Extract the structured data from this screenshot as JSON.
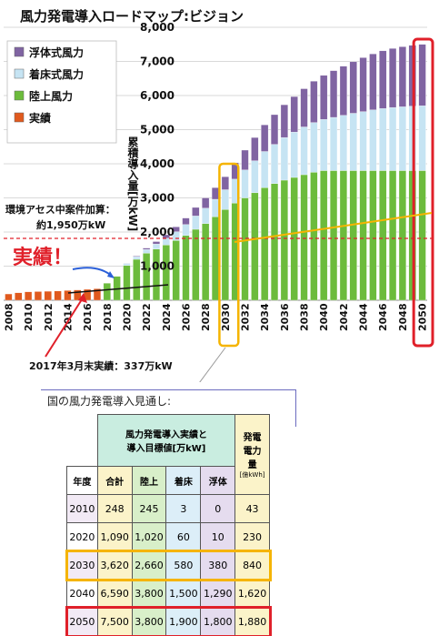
{
  "title": "風力発電導入ロードマップ:ビジョン",
  "chart_data": {
    "type": "bar",
    "stacked": true,
    "ylabel": "累積導入量[万kW]",
    "ylim": [
      0,
      8000
    ],
    "yticks": [
      1000,
      2000,
      3000,
      4000,
      5000,
      6000,
      7000,
      8000
    ],
    "ytick_labels": [
      "1,000",
      "2,000",
      "3,000",
      "4,000",
      "5,000",
      "6,000",
      "7,000",
      "8,000"
    ],
    "xtick_labels": [
      "2008",
      "2010",
      "2012",
      "2014",
      "2016",
      "2018",
      "2020",
      "2022",
      "2024",
      "2026",
      "2028",
      "2030",
      "2032",
      "2034",
      "2036",
      "2038",
      "2040",
      "2042",
      "2044",
      "2046",
      "2048",
      "2050"
    ],
    "categories": [
      2008,
      2009,
      2010,
      2011,
      2012,
      2013,
      2014,
      2015,
      2016,
      2017,
      2018,
      2019,
      2020,
      2021,
      2022,
      2023,
      2024,
      2025,
      2026,
      2027,
      2028,
      2029,
      2030,
      2031,
      2032,
      2033,
      2034,
      2035,
      2036,
      2037,
      2038,
      2039,
      2040,
      2041,
      2042,
      2043,
      2044,
      2045,
      2046,
      2047,
      2048,
      2049,
      2050
    ],
    "series": [
      {
        "name": "実績",
        "color": "#e05a1e",
        "values": [
          185,
          219,
          248,
          255,
          264,
          270,
          286,
          303,
          320,
          337,
          0,
          0,
          0,
          0,
          0,
          0,
          0,
          0,
          0,
          0,
          0,
          0,
          0,
          0,
          0,
          0,
          0,
          0,
          0,
          0,
          0,
          0,
          0,
          0,
          0,
          0,
          0,
          0,
          0,
          0,
          0,
          0,
          0
        ]
      },
      {
        "name": "陸上風力",
        "color": "#6cbb3c",
        "values": [
          0,
          0,
          0,
          0,
          0,
          0,
          0,
          0,
          0,
          0,
          500,
          700,
          1020,
          1200,
          1380,
          1500,
          1620,
          1750,
          1900,
          2080,
          2250,
          2450,
          2660,
          2850,
          3000,
          3150,
          3300,
          3420,
          3520,
          3600,
          3680,
          3750,
          3800,
          3800,
          3800,
          3800,
          3800,
          3800,
          3800,
          3800,
          3800,
          3800,
          3800
        ]
      },
      {
        "name": "着床式風力",
        "color": "#c6e4f3",
        "values": [
          0,
          0,
          0,
          0,
          0,
          0,
          0,
          0,
          0,
          0,
          0,
          0,
          60,
          80,
          110,
          150,
          200,
          260,
          320,
          390,
          450,
          510,
          580,
          700,
          820,
          940,
          1060,
          1150,
          1250,
          1330,
          1400,
          1460,
          1500,
          1560,
          1620,
          1680,
          1730,
          1780,
          1820,
          1850,
          1870,
          1890,
          1900
        ]
      },
      {
        "name": "浮体式風力",
        "color": "#8064a2",
        "values": [
          0,
          0,
          0,
          0,
          0,
          0,
          0,
          0,
          0,
          0,
          0,
          0,
          10,
          20,
          40,
          70,
          100,
          140,
          190,
          250,
          300,
          340,
          380,
          480,
          580,
          680,
          780,
          870,
          960,
          1040,
          1120,
          1210,
          1290,
          1370,
          1440,
          1510,
          1580,
          1640,
          1690,
          1730,
          1760,
          1780,
          1800
        ]
      }
    ],
    "legend": [
      "浮体式風力",
      "着床式風力",
      "陸上風力",
      "実績"
    ],
    "legend_position": "top-left",
    "annotations": {
      "assessment": [
        "環境アセス中案件加算：",
        "約1,950万kW"
      ],
      "actual_big": "実績！",
      "march_2017": "2017年3月末実績：337万kW"
    },
    "highlight_years": {
      "yellow": 2030,
      "red": 2050
    }
  },
  "table": {
    "subtitle": "国の風力発電導入見通し:",
    "header_group": [
      "風力発電導入実績と",
      "導入目標値[万kW]"
    ],
    "header_gen": [
      "発電",
      "電力",
      "量"
    ],
    "columns": [
      "年度",
      "合計",
      "陸上",
      "着床",
      "浮体"
    ],
    "gen_unit": "[億kWh]",
    "rows": [
      {
        "year": "2010",
        "total": "248",
        "onshore": "245",
        "fixed": "3",
        "floating": "0",
        "gen": "43",
        "row_bg": "#f2eaf5"
      },
      {
        "year": "2020",
        "total": "1,090",
        "onshore": "1,020",
        "fixed": "60",
        "floating": "10",
        "gen": "230",
        "row_bg": "#fff"
      },
      {
        "year": "2030",
        "total": "3,620",
        "onshore": "2,660",
        "fixed": "580",
        "floating": "380",
        "gen": "840",
        "row_bg": "#f2eaf5"
      },
      {
        "year": "2040",
        "total": "6,590",
        "onshore": "3,800",
        "fixed": "1,500",
        "floating": "1,290",
        "gen": "1,620",
        "row_bg": "#fff"
      },
      {
        "year": "2050",
        "total": "7,500",
        "onshore": "3,800",
        "fixed": "1,900",
        "floating": "1,800",
        "gen": "1,880",
        "row_bg": "#f2eaf5"
      }
    ]
  }
}
